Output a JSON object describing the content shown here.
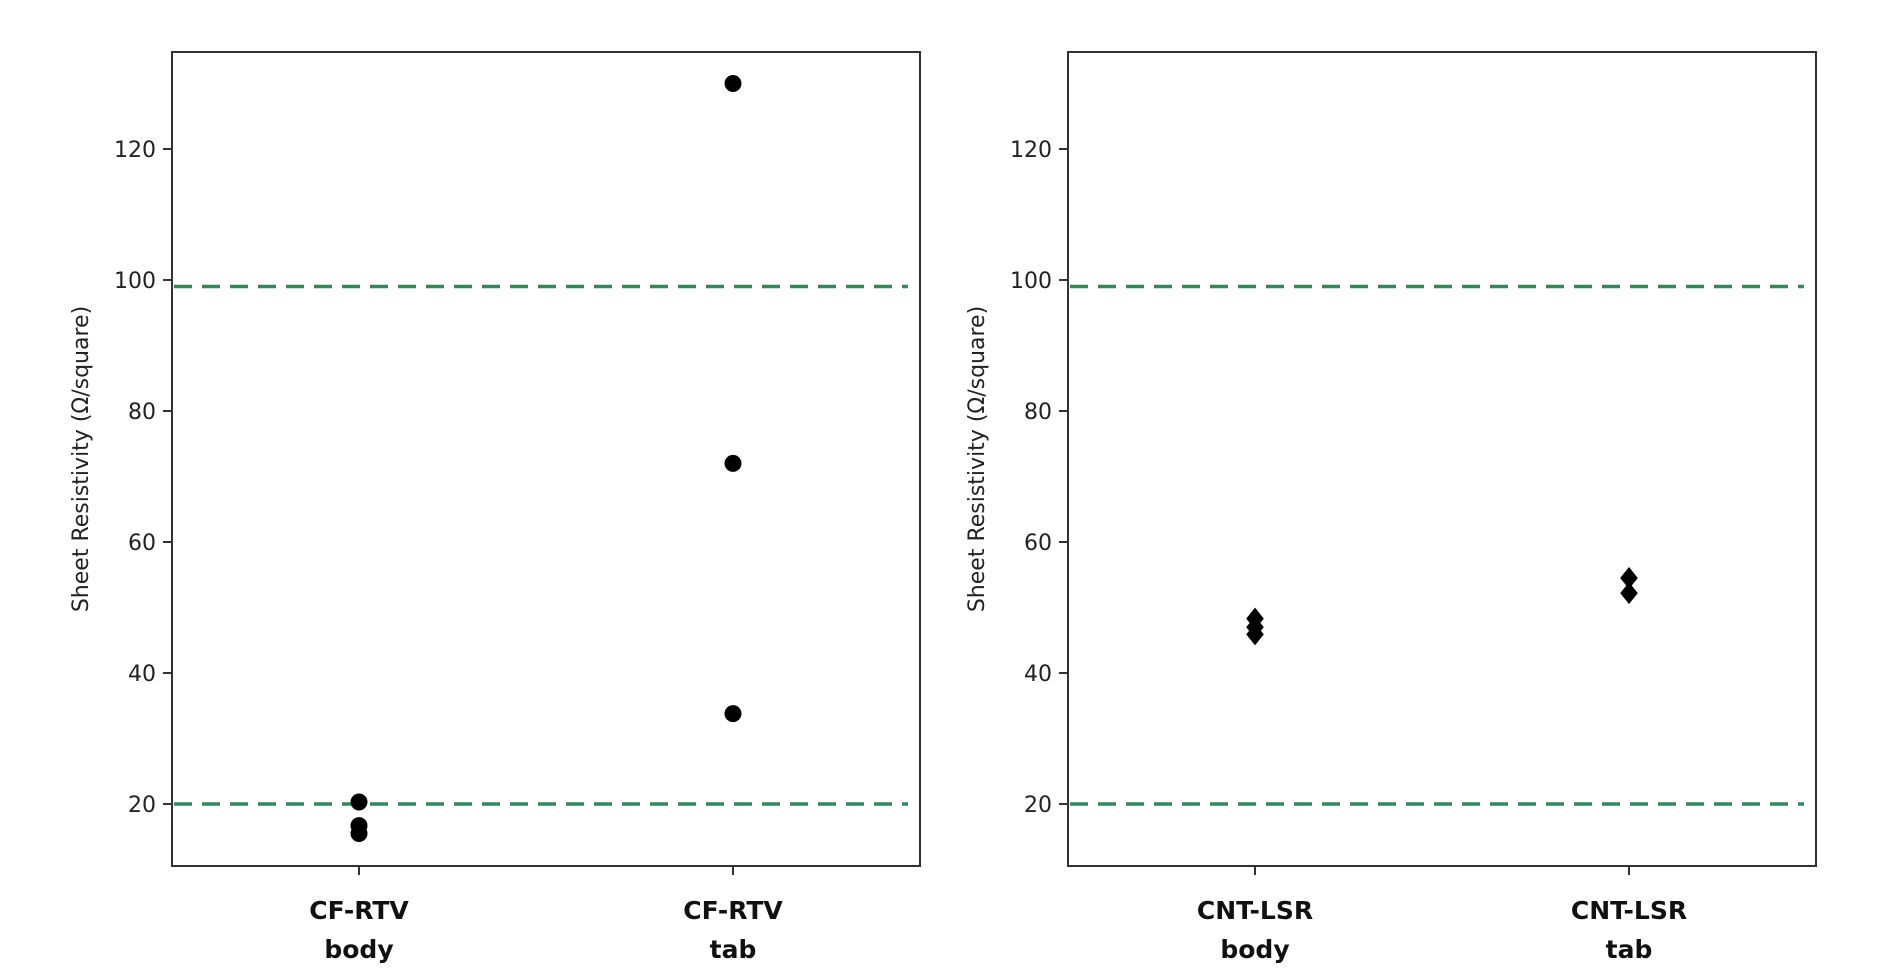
{
  "chart_data": [
    {
      "type": "scatter",
      "ylabel": "Sheet Resistivity (Ω/square)",
      "ylim": [
        10,
        135
      ],
      "yticks": [
        20,
        40,
        60,
        80,
        100,
        120
      ],
      "grid": false,
      "categories": [
        {
          "line1": "CF-RTV",
          "line2": "body"
        },
        {
          "line1": "CF-RTV",
          "line2": "tab"
        }
      ],
      "marker": "circle",
      "marker_color": "#000000",
      "points": [
        {
          "category": 0,
          "y": 20.3
        },
        {
          "category": 0,
          "y": 16.7
        },
        {
          "category": 0,
          "y": 15.5
        },
        {
          "category": 1,
          "y": 130
        },
        {
          "category": 1,
          "y": 72
        },
        {
          "category": 1,
          "y": 33.8
        }
      ],
      "reference_lines": [
        {
          "y": 99,
          "style": "dashed",
          "color": "#2e8b57"
        },
        {
          "y": 20,
          "style": "dashed",
          "color": "#2e8b57"
        }
      ]
    },
    {
      "type": "scatter",
      "ylabel": "Sheet Resistivity (Ω/square)",
      "ylim": [
        10,
        135
      ],
      "yticks": [
        20,
        40,
        60,
        80,
        100,
        120
      ],
      "grid": false,
      "categories": [
        {
          "line1": "CNT-LSR",
          "line2": "body"
        },
        {
          "line1": "CNT-LSR",
          "line2": "tab"
        }
      ],
      "marker": "diamond",
      "marker_color": "#000000",
      "points": [
        {
          "category": 0,
          "y": 48.3
        },
        {
          "category": 0,
          "y": 47.0
        },
        {
          "category": 0,
          "y": 45.9
        },
        {
          "category": 1,
          "y": 54.5
        },
        {
          "category": 1,
          "y": 52.2
        }
      ],
      "reference_lines": [
        {
          "y": 99,
          "style": "dashed",
          "color": "#2e8b57"
        },
        {
          "y": 20,
          "style": "dashed",
          "color": "#2e8b57"
        }
      ]
    }
  ]
}
